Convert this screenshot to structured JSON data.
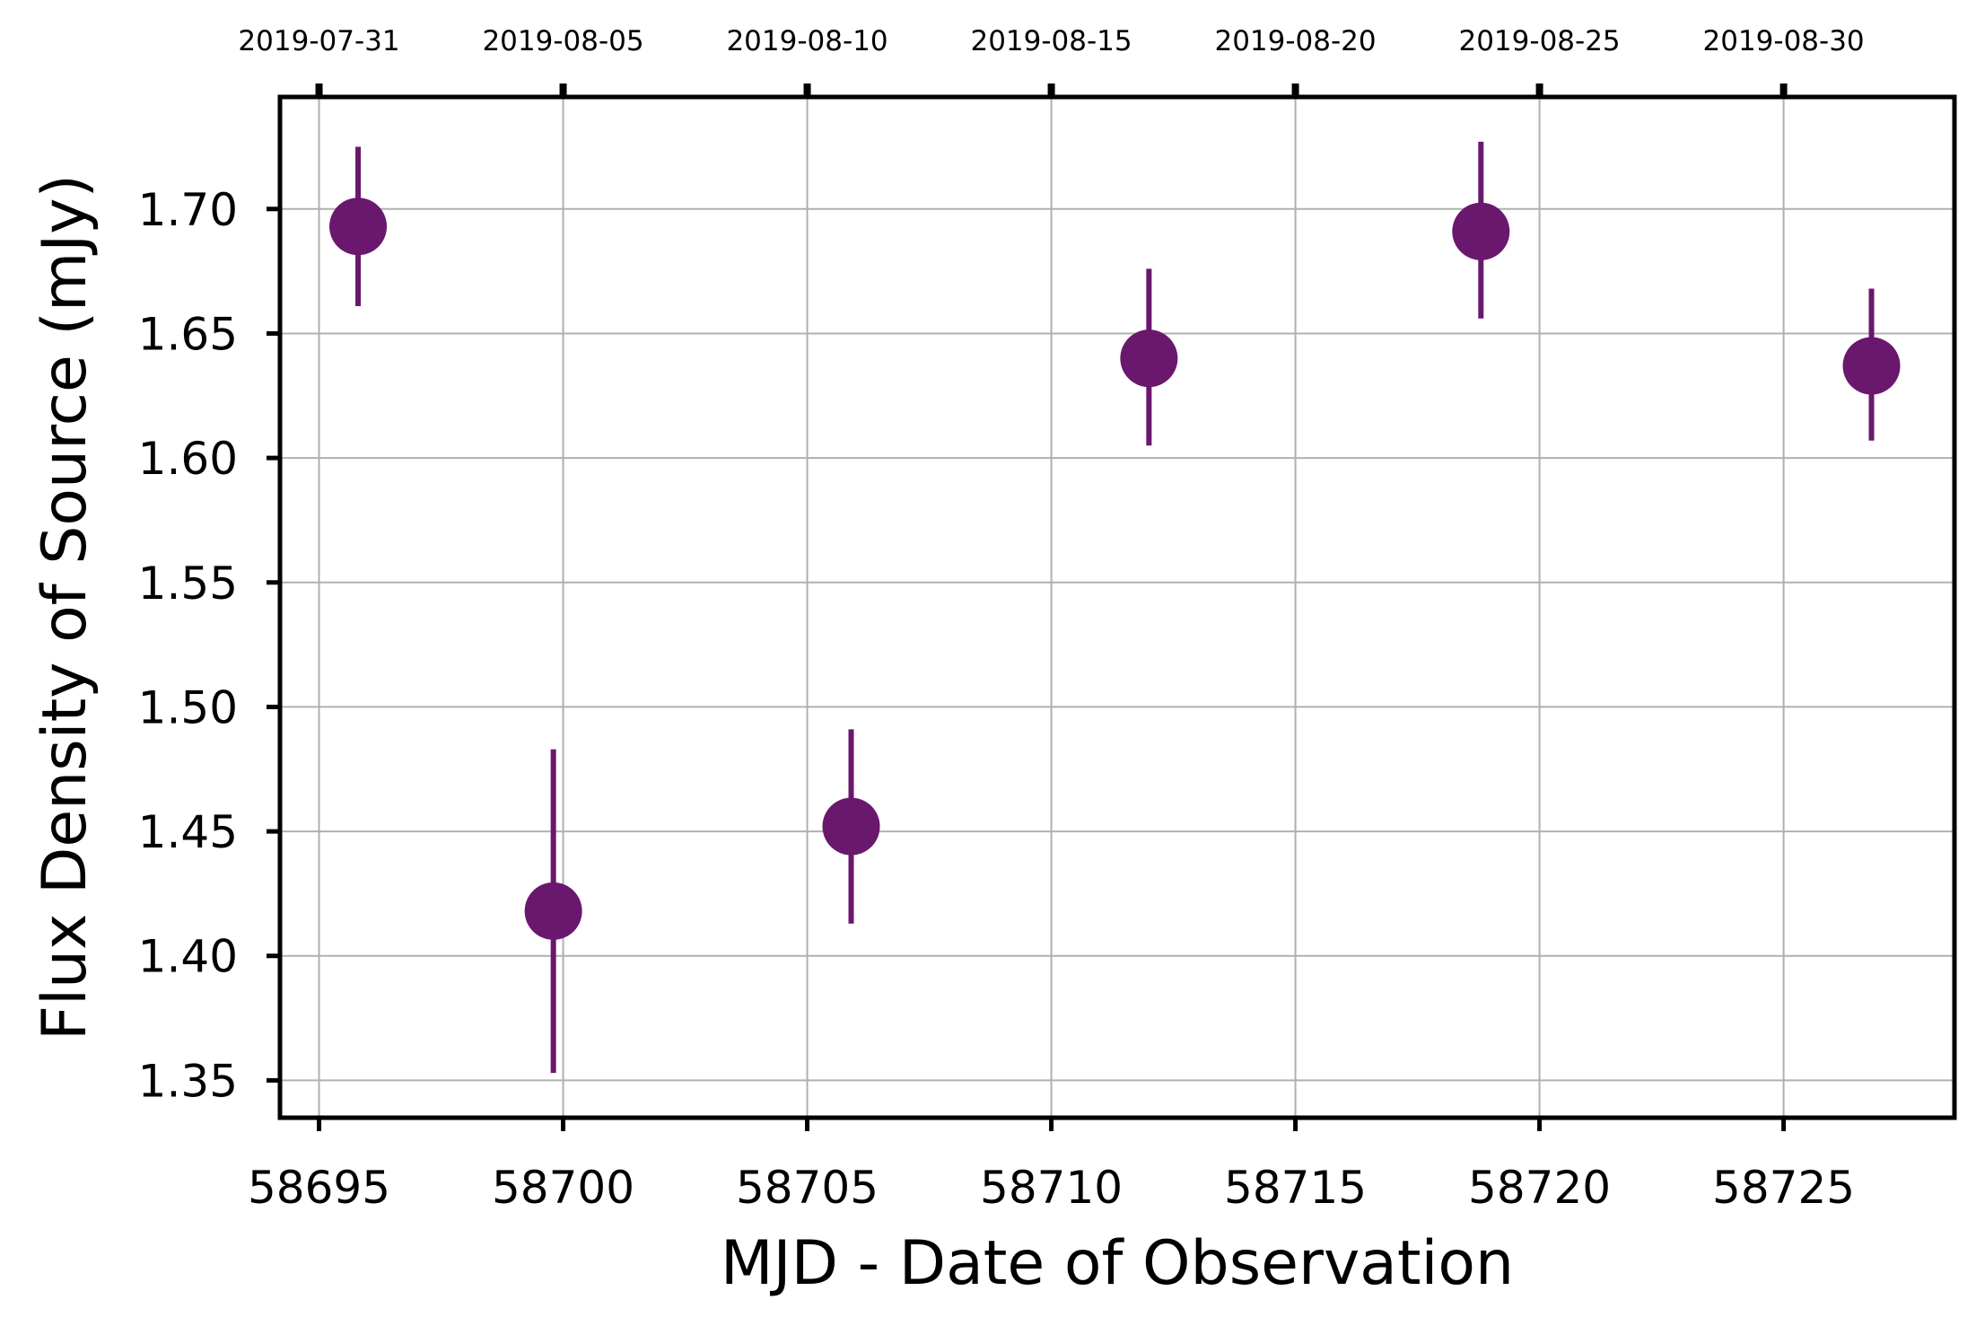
{
  "chart_data": {
    "type": "scatter",
    "title": "",
    "xlabel": "MJD - Date of Observation",
    "ylabel": "Flux Density of Source (mJy)",
    "xlim": [
      58694.2,
      58728.5
    ],
    "ylim": [
      1.335,
      1.745
    ],
    "grid": true,
    "error_bars": true,
    "marker_color": "#6a176e",
    "x_ticks": [
      58695,
      58700,
      58705,
      58710,
      58715,
      58720,
      58725
    ],
    "x_tick_labels": [
      "58695",
      "58700",
      "58705",
      "58710",
      "58715",
      "58720",
      "58725"
    ],
    "y_ticks": [
      1.35,
      1.4,
      1.45,
      1.5,
      1.55,
      1.6,
      1.65,
      1.7
    ],
    "y_tick_labels": [
      "1.35",
      "1.40",
      "1.45",
      "1.50",
      "1.55",
      "1.60",
      "1.65",
      "1.70"
    ],
    "top_axis": {
      "ticks": [
        58695,
        58700,
        58705,
        58710,
        58715,
        58720,
        58725
      ],
      "tick_labels": [
        "2019-07-31",
        "2019-08-05",
        "2019-08-10",
        "2019-08-15",
        "2019-08-20",
        "2019-08-25",
        "2019-08-30"
      ]
    },
    "series": [
      {
        "points": [
          {
            "x": 58695.8,
            "y": 1.693,
            "y_low": 1.661,
            "y_high": 1.725
          },
          {
            "x": 58699.8,
            "y": 1.418,
            "y_low": 1.353,
            "y_high": 1.483
          },
          {
            "x": 58705.9,
            "y": 1.452,
            "y_low": 1.413,
            "y_high": 1.491
          },
          {
            "x": 58712.0,
            "y": 1.64,
            "y_low": 1.605,
            "y_high": 1.676
          },
          {
            "x": 58718.8,
            "y": 1.691,
            "y_low": 1.656,
            "y_high": 1.727
          },
          {
            "x": 58726.8,
            "y": 1.637,
            "y_low": 1.607,
            "y_high": 1.668
          }
        ]
      }
    ]
  }
}
